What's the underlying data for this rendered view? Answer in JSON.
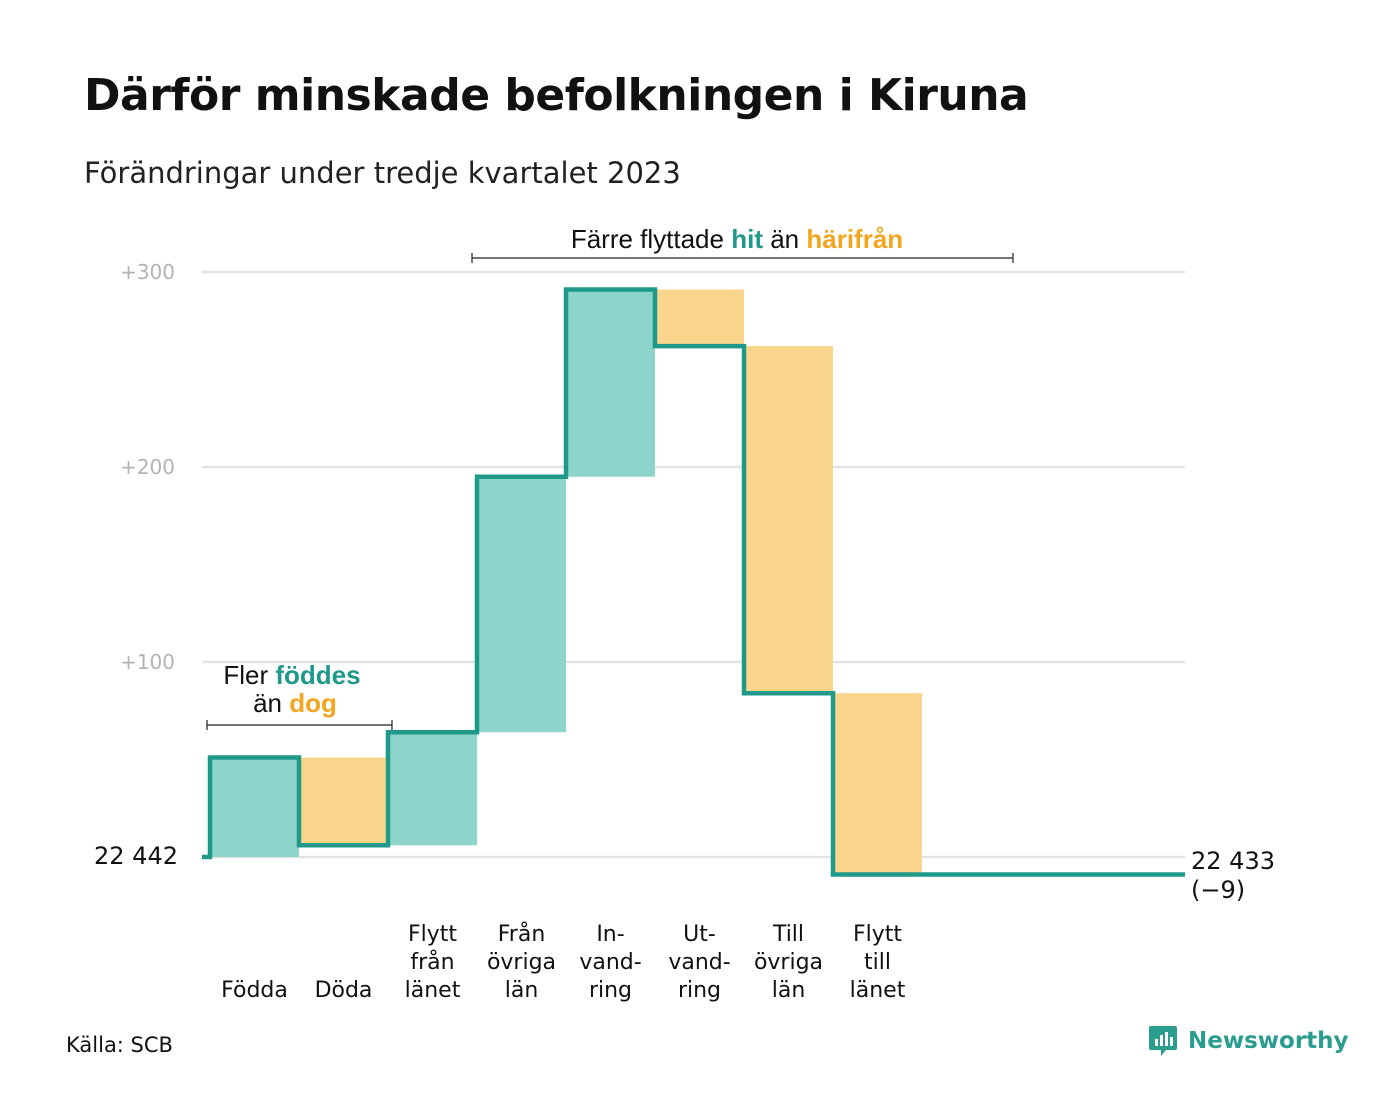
{
  "title": "Därför minskade befolkningen i Kiruna",
  "subtitle": "Förändringar under tredje kvartalet 2023",
  "source": "Källa: SCB",
  "brand": {
    "name": "Newsworthy",
    "icon": "newsworthy-logo-icon"
  },
  "colors": {
    "increase": "#8dd4cb",
    "decrease": "#fad68c",
    "line": "#1f9a8a",
    "grid": "#e3e3e3",
    "tick": "#b3b3b3",
    "accent_teal": "#1f9a8a",
    "accent_orange": "#f2a51f"
  },
  "annotations": {
    "births": {
      "line1_pre": "Fler ",
      "line1_em": "föddes",
      "line2_pre": "än ",
      "line2_em": "dog"
    },
    "migration": {
      "pre": "Färre flyttade ",
      "em1": "hit",
      "mid": " än ",
      "em2": "härifrån"
    }
  },
  "chart_data": {
    "type": "waterfall",
    "title": "Därför minskade befolkningen i Kiruna",
    "subtitle": "Förändringar under tredje kvartalet 2023",
    "baseline": 22442,
    "start_label": "22  442",
    "end_value": 22433,
    "end_label": "22 433",
    "end_change_label": "(−9)",
    "y_ticks": [
      {
        "value": 100,
        "label": "+100"
      },
      {
        "value": 200,
        "label": "+200"
      },
      {
        "value": 300,
        "label": "+300"
      }
    ],
    "ylim": [
      -10,
      300
    ],
    "grid": true,
    "steps": [
      {
        "label": [
          "Födda"
        ],
        "change": 51
      },
      {
        "label": [
          "Döda"
        ],
        "change": -45
      },
      {
        "label": [
          "Flytt",
          "från",
          "länet"
        ],
        "change": 58
      },
      {
        "label": [
          "Från",
          "övriga",
          "län"
        ],
        "change": 131
      },
      {
        "label": [
          "In-",
          "vand-",
          "ring"
        ],
        "change": 96
      },
      {
        "label": [
          "Ut-",
          "vand-",
          "ring"
        ],
        "change": -29
      },
      {
        "label": [
          "Till",
          "övriga",
          "län"
        ],
        "change": -178
      },
      {
        "label": [
          "Flytt",
          "till",
          "länet"
        ],
        "change": -93
      }
    ]
  }
}
